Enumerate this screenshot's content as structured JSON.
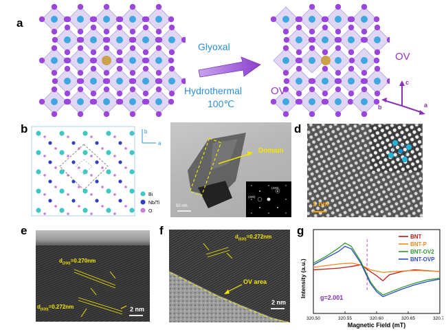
{
  "panels": {
    "a": {
      "letter": "a",
      "reagent": "Glyoxal",
      "process": "Hydrothermal",
      "temperature": "100℃",
      "ov_right": "OV",
      "ov_left": "OV",
      "axes": {
        "c": "c",
        "b": "b",
        "a": "a"
      },
      "colors": {
        "text": "#2c8fd6",
        "ov": "#9a34c9",
        "arrow": "#9b59d0"
      }
    },
    "b": {
      "letter": "b",
      "axis_b": "b",
      "axis_a": "a",
      "legend": [
        {
          "label": "Bi",
          "color": "#3fc7c2"
        },
        {
          "label": "Nb/Ti",
          "color": "#2e3fbf"
        },
        {
          "label": "O",
          "color": "#c77ad9"
        }
      ]
    },
    "c": {
      "letter": "c",
      "annotation": "Domain",
      "scale": "50 nm",
      "saed_labels": [
        "(220)",
        "(200)"
      ]
    },
    "d": {
      "letter": "d",
      "scale": "1 nm"
    },
    "e": {
      "letter": "e",
      "d1_prefix": "d",
      "d1_sub": "(200)",
      "d1_value": "=0.270nm",
      "d2_prefix": "d",
      "d2_sub": "(020)",
      "d2_value": "=0.272nm",
      "scale": "2 nm"
    },
    "f": {
      "letter": "f",
      "d_prefix": "d",
      "d_sub": "(020)",
      "d_value": "=0.272nm",
      "area_label": "OV area",
      "scale": "2 nm"
    },
    "g": {
      "letter": "g",
      "annotation": "g=2.001"
    }
  },
  "chart_data": {
    "type": "line",
    "xlabel": "Magnetic Field (mT)",
    "ylabel": "Intensity (a.u.)",
    "xlim": [
      320.5,
      320.7
    ],
    "x_ticks": [
      "320.50",
      "320.55",
      "320.60",
      "320.65",
      "320.70"
    ],
    "legend_position": "top-right",
    "marker_x": 320.585,
    "series": [
      {
        "name": "BNT",
        "color": "#c01818",
        "x": [
          320.5,
          320.52,
          320.54,
          320.56,
          320.575,
          320.59,
          320.6,
          320.61,
          320.62,
          320.64,
          320.66,
          320.68,
          320.7
        ],
        "y": [
          0.52,
          0.53,
          0.54,
          0.56,
          0.58,
          0.5,
          0.45,
          0.39,
          0.46,
          0.5,
          0.52,
          0.51,
          0.5
        ]
      },
      {
        "name": "BNT-P",
        "color": "#f08a1c",
        "x": [
          320.5,
          320.52,
          320.54,
          320.56,
          320.575,
          320.59,
          320.61,
          320.63,
          320.65,
          320.67,
          320.7
        ],
        "y": [
          0.55,
          0.57,
          0.59,
          0.6,
          0.58,
          0.52,
          0.49,
          0.5,
          0.51,
          0.51,
          0.5
        ]
      },
      {
        "name": "BNT-OV2",
        "color": "#2d9e2d",
        "x": [
          320.5,
          320.52,
          320.54,
          320.55,
          320.56,
          320.575,
          320.59,
          320.6,
          320.61,
          320.62,
          320.64,
          320.66,
          320.68,
          320.7
        ],
        "y": [
          0.6,
          0.68,
          0.78,
          0.84,
          0.8,
          0.62,
          0.38,
          0.28,
          0.22,
          0.25,
          0.31,
          0.36,
          0.4,
          0.42
        ]
      },
      {
        "name": "BNT-OVP",
        "color": "#2b47c8",
        "x": [
          320.5,
          320.52,
          320.54,
          320.55,
          320.56,
          320.575,
          320.59,
          320.6,
          320.61,
          320.62,
          320.64,
          320.66,
          320.68,
          320.7
        ],
        "y": [
          0.58,
          0.66,
          0.74,
          0.8,
          0.77,
          0.6,
          0.36,
          0.26,
          0.2,
          0.23,
          0.29,
          0.34,
          0.38,
          0.41
        ]
      }
    ]
  }
}
